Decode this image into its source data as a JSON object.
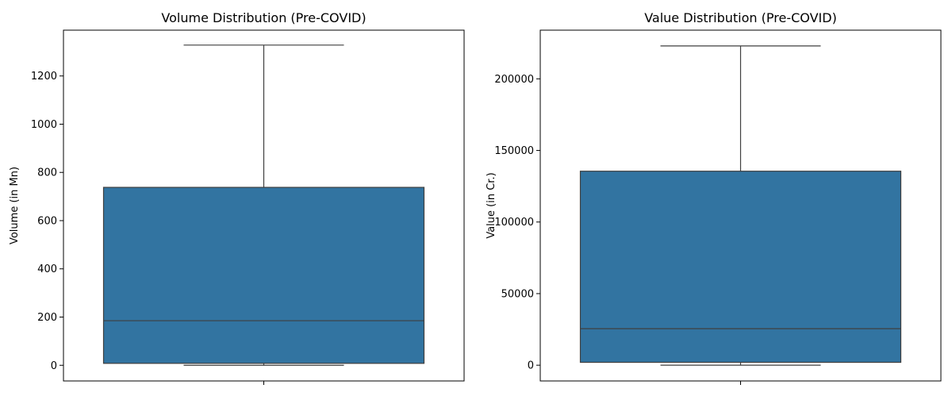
{
  "chart_data": [
    {
      "type": "box",
      "title": "Volume Distribution (Pre-COVID)",
      "xlabel": "",
      "ylabel": "Volume (in Mn)",
      "ylim": [
        -65,
        1390
      ],
      "yticks": [
        0,
        200,
        400,
        600,
        800,
        1000,
        1200
      ],
      "box": {
        "whisker_low": 0,
        "q1": 8,
        "median": 185,
        "q3": 738,
        "whisker_high": 1328
      },
      "color": "#3274a1"
    },
    {
      "type": "box",
      "title": "Value Distribution (Pre-COVID)",
      "xlabel": "",
      "ylabel": "Value (in Cr.)",
      "ylim": [
        -11000,
        234000
      ],
      "yticks": [
        0,
        50000,
        100000,
        150000,
        200000
      ],
      "box": {
        "whisker_low": 0,
        "q1": 2000,
        "median": 25500,
        "q3": 135500,
        "whisker_high": 223000
      },
      "color": "#3274a1"
    }
  ]
}
